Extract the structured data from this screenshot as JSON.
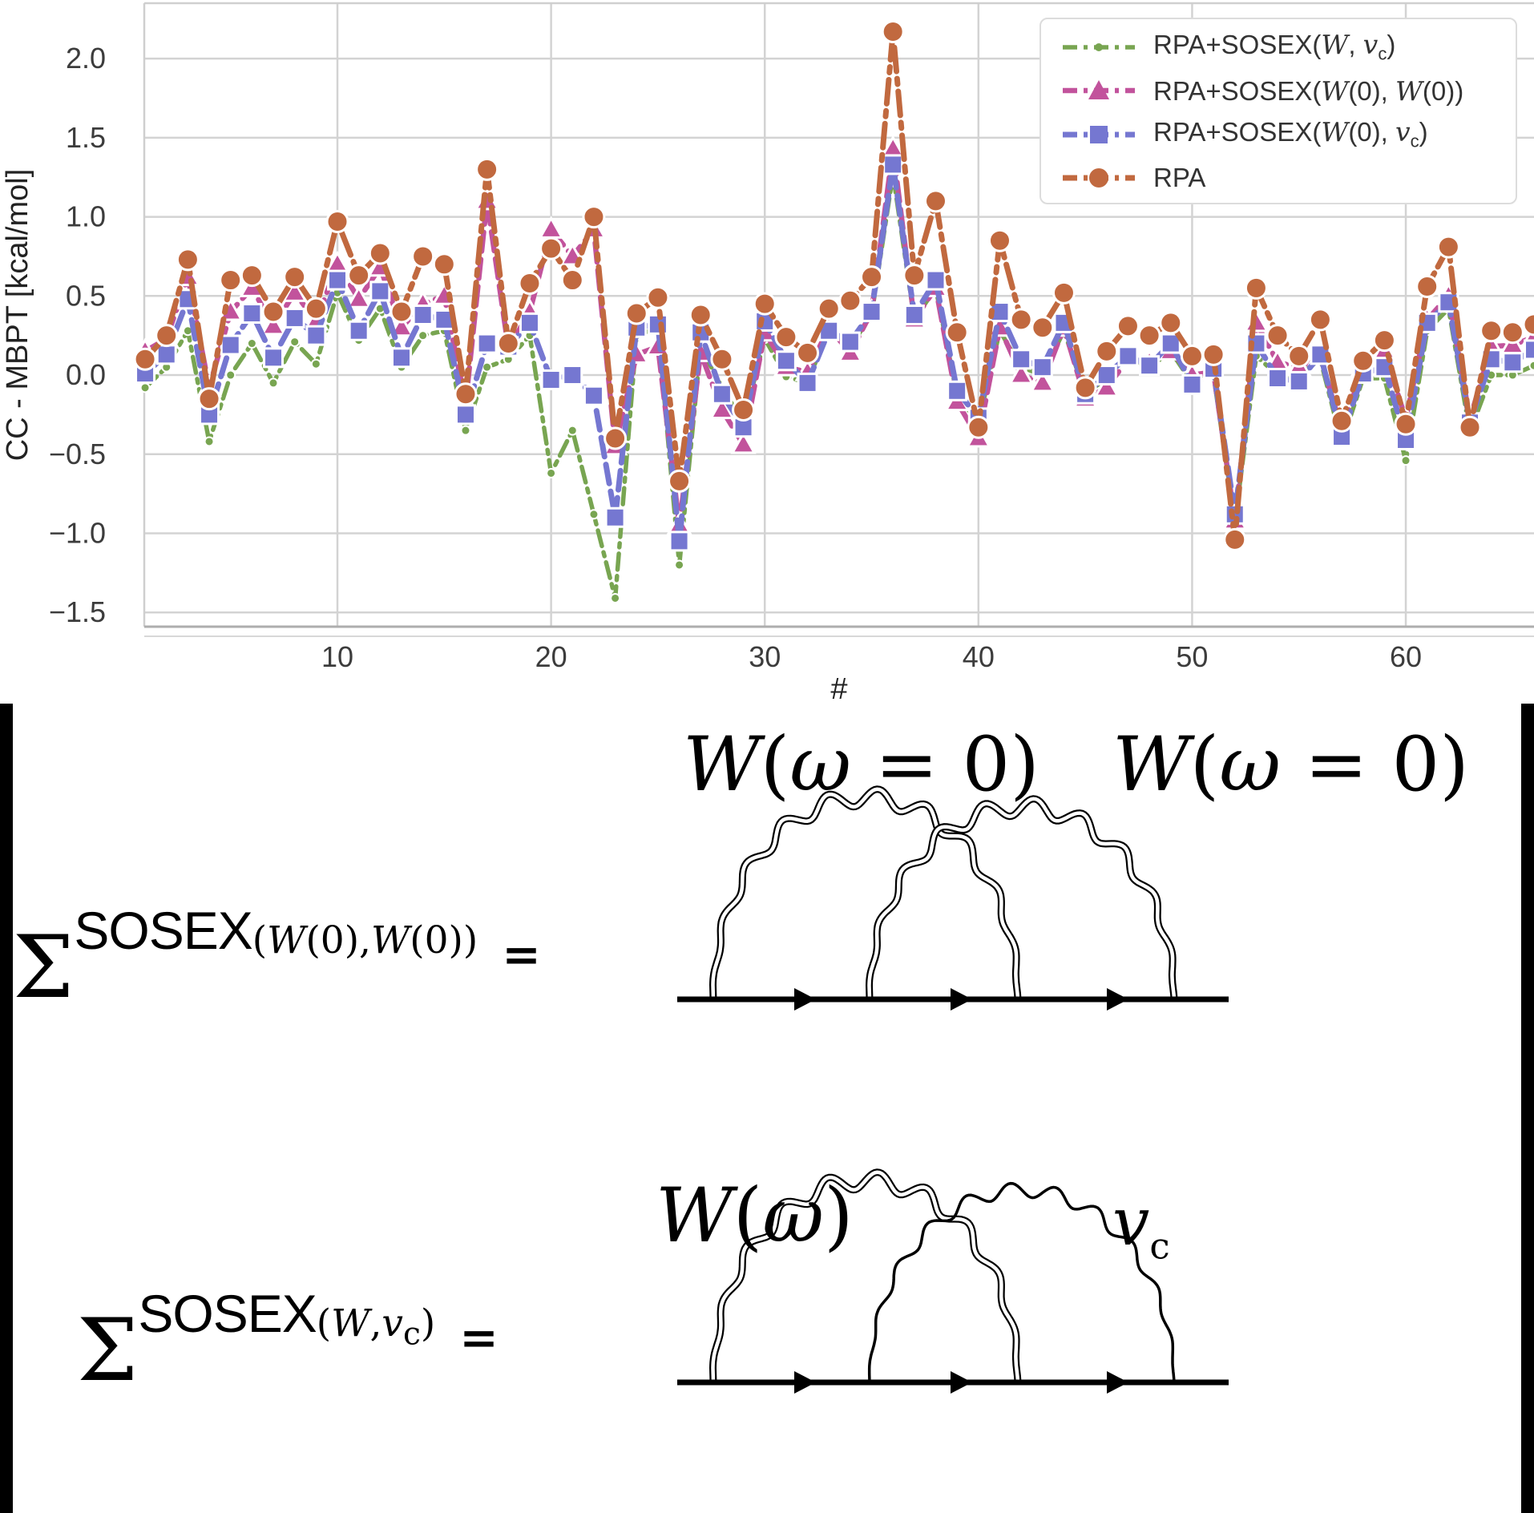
{
  "figure": {
    "background": "#ffffff",
    "edge_bar_color": "#000000"
  },
  "chart_data": {
    "type": "line",
    "title": "",
    "xlabel": "#",
    "ylabel": "CC - MBPT [kcal/mol]",
    "xlim": [
      0.96,
      66.0
    ],
    "ylim": [
      -1.59,
      2.35
    ],
    "grid": true,
    "legend_position": "upper right",
    "xticks": [
      10,
      20,
      30,
      40,
      50,
      60
    ],
    "ytick_labels": [
      "2.0",
      "1.5",
      "1.0",
      "0.5",
      "0.0",
      "−0.5",
      "−1.0",
      "−1.5"
    ],
    "ytick_values": [
      2.0,
      1.5,
      1.0,
      0.5,
      0.0,
      -0.5,
      -1.0,
      -1.5
    ],
    "x_start": 1,
    "series": [
      {
        "name": "RPA+SOSEX(W, vc)",
        "label_html": "RPA+SOSEX(<i>W</i>, <i>v</i><sub>c</sub>)",
        "color": "#78a551",
        "marker": "dot",
        "dash": "20 8 5 8",
        "line_width": 5.5,
        "values": [
          -0.08,
          0.05,
          0.28,
          -0.42,
          0.0,
          0.2,
          -0.05,
          0.21,
          0.07,
          0.52,
          0.22,
          0.42,
          0.05,
          0.25,
          0.28,
          -0.35,
          0.05,
          0.1,
          0.25,
          -0.62,
          -0.35,
          -0.88,
          -1.41,
          0.25,
          0.3,
          -1.2,
          0.18,
          -0.08,
          -0.3,
          0.23,
          -0.01,
          -0.05,
          0.3,
          0.18,
          0.38,
          1.27,
          0.35,
          0.55,
          -0.13,
          -0.3,
          0.28,
          0.05,
          0.0,
          0.28,
          -0.12,
          -0.02,
          0.1,
          0.05,
          0.15,
          -0.05,
          0.0,
          -0.93,
          0.12,
          0.0,
          0.0,
          0.1,
          -0.43,
          -0.02,
          -0.02,
          -0.54,
          0.28,
          0.42,
          -0.36,
          0.0,
          0.0,
          0.06
        ]
      },
      {
        "name": "RPA+SOSEX(W(0), W(0))",
        "label_html": "RPA+SOSEX(<i>W</i>(0), <i>W</i>(0))",
        "color": "#c2539c",
        "marker": "triangle",
        "dash": "24 10",
        "line_width": 6.5,
        "values": [
          0.15,
          0.23,
          0.62,
          -0.08,
          0.4,
          0.55,
          0.31,
          0.52,
          0.34,
          0.7,
          0.48,
          0.68,
          0.3,
          0.45,
          0.5,
          -0.18,
          1.1,
          0.17,
          0.4,
          0.92,
          0.75,
          0.92,
          -0.45,
          0.13,
          0.18,
          -0.95,
          0.14,
          -0.22,
          -0.44,
          0.27,
          0.05,
          0.02,
          0.3,
          0.14,
          0.4,
          1.43,
          0.35,
          0.55,
          -0.17,
          -0.4,
          0.3,
          0.0,
          -0.05,
          0.3,
          -0.15,
          -0.08,
          0.1,
          0.08,
          0.15,
          0.0,
          0.02,
          -0.92,
          0.33,
          0.08,
          0.05,
          0.12,
          -0.35,
          0.05,
          0.15,
          -0.28,
          0.35,
          0.5,
          -0.28,
          0.18,
          0.19,
          0.24
        ]
      },
      {
        "name": "RPA+SOSEX(W(0), vc)",
        "label_html": "RPA+SOSEX(<i>W</i>(0), <i>v</i><sub>c</sub>)",
        "color": "#7577d1",
        "marker": "square",
        "dash": "24 10",
        "line_width": 7,
        "values": [
          0.01,
          0.13,
          0.48,
          -0.25,
          0.19,
          0.39,
          0.11,
          0.36,
          0.25,
          0.6,
          0.28,
          0.53,
          0.11,
          0.38,
          0.35,
          -0.25,
          0.2,
          0.18,
          0.33,
          -0.03,
          0.0,
          -0.13,
          -0.9,
          0.3,
          0.32,
          -1.05,
          0.27,
          -0.12,
          -0.33,
          0.34,
          0.09,
          -0.05,
          0.28,
          0.21,
          0.4,
          1.33,
          0.38,
          0.6,
          -0.1,
          -0.27,
          0.4,
          0.1,
          0.05,
          0.33,
          -0.12,
          0.0,
          0.12,
          0.06,
          0.2,
          -0.06,
          0.04,
          -0.88,
          0.2,
          -0.02,
          -0.04,
          0.13,
          -0.39,
          0.01,
          0.05,
          -0.41,
          0.33,
          0.46,
          -0.3,
          0.1,
          0.08,
          0.16
        ]
      },
      {
        "name": "RPA",
        "label_html": "RPA",
        "color": "#c1693f",
        "marker": "circle",
        "dash": "30 9 7 9",
        "line_width": 7,
        "values": [
          0.1,
          0.25,
          0.73,
          -0.15,
          0.6,
          0.63,
          0.4,
          0.62,
          0.42,
          0.97,
          0.63,
          0.77,
          0.4,
          0.75,
          0.7,
          -0.12,
          1.3,
          0.2,
          0.58,
          0.8,
          0.6,
          1.0,
          -0.4,
          0.39,
          0.49,
          -0.67,
          0.38,
          0.1,
          -0.22,
          0.45,
          0.24,
          0.14,
          0.42,
          0.47,
          0.62,
          2.17,
          0.63,
          1.1,
          0.27,
          -0.33,
          0.85,
          0.35,
          0.3,
          0.52,
          -0.08,
          0.15,
          0.31,
          0.25,
          0.33,
          0.12,
          0.13,
          -1.04,
          0.55,
          0.25,
          0.12,
          0.35,
          -0.29,
          0.09,
          0.22,
          -0.31,
          0.56,
          0.81,
          -0.33,
          0.28,
          0.27,
          0.32
        ]
      }
    ],
    "style": {
      "grid_color": "#d3d3d3",
      "spine_color": "#cfcfcf",
      "bottom_spine_color": "#aeaeae",
      "tick_text_color": "#3c3c3c",
      "marker_edge_color": "#ffffff"
    }
  },
  "equations": {
    "eq1": {
      "sigma": "Σ",
      "sup": "SOSEX",
      "args_html": "(<i>W</i>(0),<i>W</i>(0))",
      "equals": "=",
      "label1_html": "<i>W</i>(<i>ω</i> = 0)",
      "label2_html": "<i>W</i>(<i>ω</i> = 0)"
    },
    "eq2": {
      "sigma": "Σ",
      "sup": "SOSEX",
      "args_html": "(<i>W</i>,<i>v</i><sub>c</sub>)",
      "equals": "=",
      "label1_html": "<i>W</i>(<i>ω</i>)",
      "label2_html": "<i>v</i><sub>c</sub>"
    }
  }
}
